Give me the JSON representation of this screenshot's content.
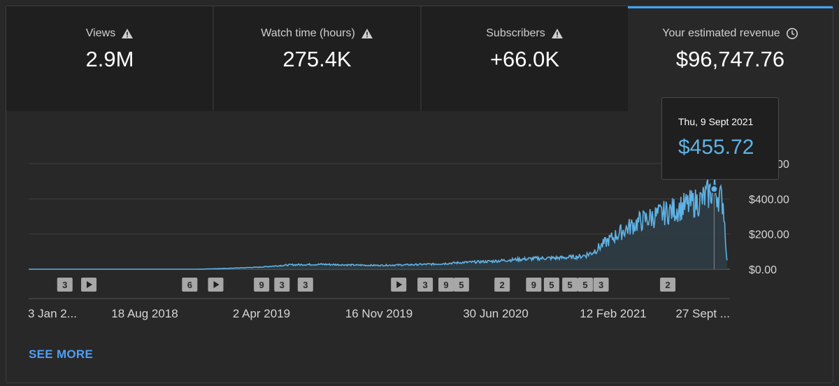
{
  "tabs": [
    {
      "label": "Views",
      "value": "2.9M",
      "icon": "warning-icon",
      "selected": false
    },
    {
      "label": "Watch time (hours)",
      "value": "275.4K",
      "icon": "warning-icon",
      "selected": false
    },
    {
      "label": "Subscribers",
      "value": "+66.0K",
      "icon": "warning-icon",
      "selected": false
    },
    {
      "label": "Your estimated revenue",
      "value": "$96,747.76",
      "icon": "clock-icon",
      "selected": true
    }
  ],
  "tooltip": {
    "date": "Thu, 9 Sept 2021",
    "value": "$455.72"
  },
  "see_more": "SEE MORE",
  "colors": {
    "line": "#5fb3e6",
    "accent": "#3ea6ff",
    "link": "#4e9ff5",
    "marker_bg": "#a7a7a7"
  },
  "chart_data": {
    "type": "line",
    "title": "",
    "xlabel": "",
    "ylabel": "",
    "x_tick_labels": [
      "3 Jan 2...",
      "18 Aug 2018",
      "2 Apr 2019",
      "16 Nov 2019",
      "30 Jun 2020",
      "12 Feb 2021",
      "27 Sept ..."
    ],
    "x_range": [
      "2018-01-03",
      "2021-10-10"
    ],
    "y_tick_labels": [
      "$0.00",
      "$200.00",
      "$400.00",
      "$600.00"
    ],
    "ylim": [
      0,
      600
    ],
    "grid": true,
    "series": [
      {
        "values_note": "daily revenue, approximate trend (weekly samples)",
        "dates": [
          "2018-01-03",
          "2018-04-01",
          "2018-08-18",
          "2018-12-01",
          "2019-02-01",
          "2019-04-02",
          "2019-06-01",
          "2019-08-01",
          "2019-10-01",
          "2019-11-16",
          "2020-01-15",
          "2020-03-15",
          "2020-05-01",
          "2020-06-30",
          "2020-08-15",
          "2020-10-01",
          "2020-11-15",
          "2020-12-20",
          "2021-01-10",
          "2021-02-12",
          "2021-03-15",
          "2021-04-15",
          "2021-05-15",
          "2021-06-15",
          "2021-07-15",
          "2021-08-15",
          "2021-09-09",
          "2021-09-27",
          "2021-10-05"
        ],
        "values": [
          0,
          0,
          0,
          0,
          5,
          12,
          25,
          28,
          24,
          22,
          25,
          30,
          38,
          45,
          55,
          62,
          65,
          72,
          90,
          160,
          220,
          270,
          300,
          330,
          360,
          390,
          455.72,
          380,
          10
        ]
      }
    ],
    "markers": [
      {
        "date": "2018-03-15",
        "label": "3"
      },
      {
        "date": "2018-05-01",
        "kind": "play"
      },
      {
        "date": "2018-11-15",
        "label": "6"
      },
      {
        "date": "2019-01-05",
        "kind": "play"
      },
      {
        "date": "2019-04-05",
        "label": "9"
      },
      {
        "date": "2019-05-15",
        "label": "3"
      },
      {
        "date": "2019-06-30",
        "label": "3"
      },
      {
        "date": "2019-12-30",
        "kind": "play"
      },
      {
        "date": "2020-02-20",
        "label": "3"
      },
      {
        "date": "2020-04-01",
        "label": "9"
      },
      {
        "date": "2020-05-01",
        "label": "5"
      },
      {
        "date": "2020-07-20",
        "label": "2"
      },
      {
        "date": "2020-09-20",
        "label": "9"
      },
      {
        "date": "2020-10-25",
        "label": "5"
      },
      {
        "date": "2020-11-30",
        "label": "5"
      },
      {
        "date": "2020-12-30",
        "label": "5"
      },
      {
        "date": "2021-01-30",
        "label": "3"
      },
      {
        "date": "2021-06-10",
        "label": "2"
      }
    ]
  }
}
